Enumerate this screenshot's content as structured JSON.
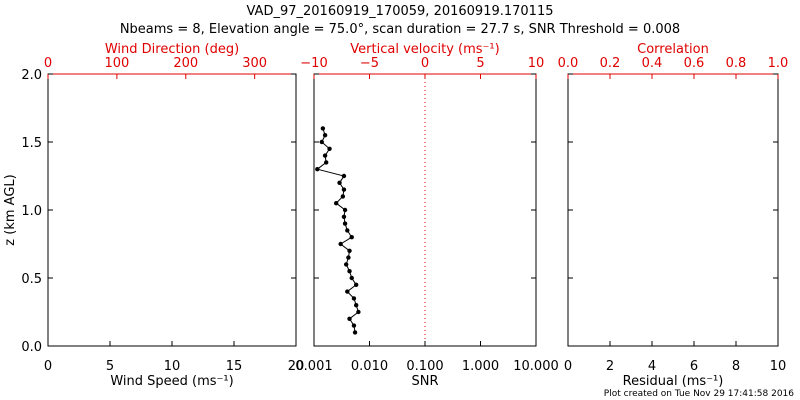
{
  "title_line1": "VAD_97_20160919_170059, 20160919.170115",
  "title_line2": "Nbeams = 8, Elevation angle = 75.0°, scan duration = 27.7 s, SNR Threshold = 0.008",
  "footer": "Plot created on Tue Nov 29 17:41:58 2016",
  "colors": {
    "axis": "#000000",
    "top_axis": "#e00000",
    "zero_line": "#e00000",
    "data": "#000000"
  },
  "chart_data": [
    {
      "type": "line",
      "ylabel": "z (km AGL)",
      "ylim": [
        0.0,
        2.0
      ],
      "y_ticks": [
        "0.0",
        "0.5",
        "1.0",
        "1.5",
        "2.0"
      ],
      "xlabel_bottom": "Wind Speed (ms⁻¹)",
      "xlim_bottom": [
        0,
        20
      ],
      "x_ticks_bottom": [
        "0",
        "5",
        "10",
        "15",
        "20"
      ],
      "xlabel_top": "Wind Direction (deg)",
      "xlim_top": [
        0,
        360
      ],
      "x_ticks_top": [
        "0",
        "100",
        "200",
        "300"
      ],
      "series": []
    },
    {
      "type": "line",
      "ylim": [
        0.0,
        2.0
      ],
      "xlabel_bottom": "SNR",
      "xlim_bottom": [
        0.001,
        10.0
      ],
      "x_scale_bottom": "log",
      "x_ticks_bottom": [
        "0.001",
        "0.010",
        "0.100",
        "1.000",
        "10.000"
      ],
      "xlabel_top": "Vertical velocity (ms⁻¹)",
      "xlim_top": [
        -10,
        10
      ],
      "x_ticks_top": [
        "−10",
        "−5",
        "0",
        "5",
        "10"
      ],
      "reference_line": {
        "axis": "top",
        "value": 0,
        "style": "dotted"
      },
      "series": [
        {
          "axis": "top",
          "x": [
            -6.3,
            -6.4,
            -6.8,
            -6.0,
            -6.2,
            -6.4,
            -7.0,
            -6.2,
            -6.6,
            -6.8,
            -7.1,
            -6.9,
            -6.8,
            -7.6,
            -6.6,
            -7.0,
            -7.2,
            -7.3,
            -7.2,
            -8.0,
            -7.4,
            -7.3,
            -7.7,
            -7.3,
            -9.7,
            -8.9,
            -9.0,
            -8.6,
            -9.3,
            -9.0,
            -9.2
          ],
          "y": [
            0.1,
            0.15,
            0.2,
            0.25,
            0.3,
            0.35,
            0.4,
            0.45,
            0.5,
            0.55,
            0.6,
            0.65,
            0.7,
            0.75,
            0.8,
            0.85,
            0.9,
            0.95,
            1.0,
            1.05,
            1.1,
            1.15,
            1.2,
            1.25,
            1.3,
            1.35,
            1.4,
            1.45,
            1.5,
            1.55,
            1.6
          ]
        }
      ]
    },
    {
      "type": "line",
      "ylim": [
        0.0,
        2.0
      ],
      "xlabel_bottom": "Residual (ms⁻¹)",
      "xlim_bottom": [
        0,
        10
      ],
      "x_ticks_bottom": [
        "0",
        "2",
        "4",
        "6",
        "8",
        "10"
      ],
      "xlabel_top": "Correlation",
      "xlim_top": [
        0.0,
        1.0
      ],
      "x_ticks_top": [
        "0.0",
        "0.2",
        "0.4",
        "0.6",
        "0.8",
        "1.0"
      ],
      "series": []
    }
  ]
}
